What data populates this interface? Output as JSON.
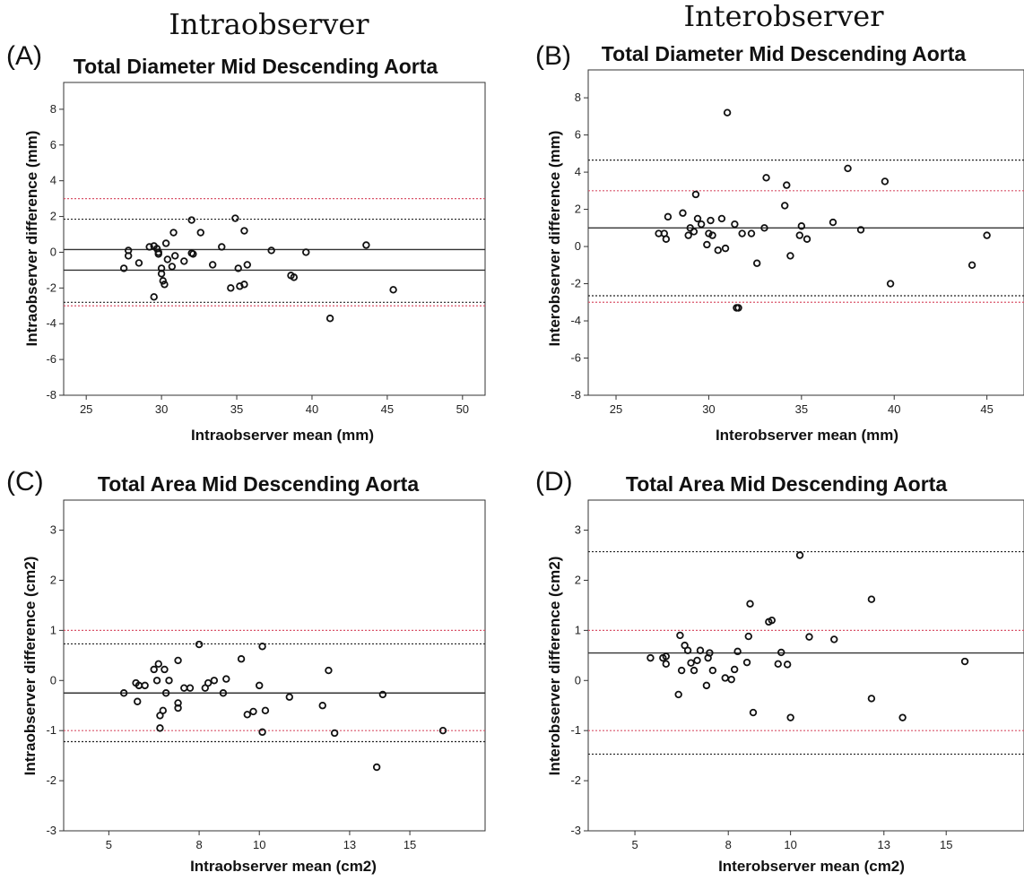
{
  "figure": {
    "column_titles": [
      "Intraobserver",
      "Interobserver"
    ]
  },
  "colors": {
    "marker": "#111111",
    "mean_line": "#333333",
    "loa_black": "#222222",
    "loa_red": "#d9546a"
  },
  "chart_data": [
    {
      "panel": "(A)",
      "type": "scatter",
      "title": "Total Diameter Mid Descending Aorta",
      "xlabel": "Intraobserver mean (mm)",
      "ylabel": "Intraobserver difference (mm)",
      "xlim": [
        23.5,
        51.5
      ],
      "ylim": [
        -8,
        9.5
      ],
      "xticks": [
        25,
        30,
        35,
        40,
        45,
        50
      ],
      "yticks": [
        -8,
        -6,
        -4,
        -2,
        0,
        2,
        4,
        6,
        8
      ],
      "grid": false,
      "reference_lines": [
        {
          "y": 0.15,
          "style": "solid",
          "color": "black"
        },
        {
          "y": -1.0,
          "style": "solid",
          "color": "black"
        },
        {
          "y": 1.85,
          "style": "dotted",
          "color": "black"
        },
        {
          "y": -2.8,
          "style": "dotted",
          "color": "black"
        },
        {
          "y": 3.0,
          "style": "dotted",
          "color": "red"
        },
        {
          "y": -3.0,
          "style": "dotted",
          "color": "red"
        }
      ],
      "points": [
        [
          27.5,
          -0.9
        ],
        [
          27.8,
          -0.2
        ],
        [
          27.8,
          0.1
        ],
        [
          28.5,
          -0.6
        ],
        [
          29.2,
          0.3
        ],
        [
          29.5,
          0.35
        ],
        [
          29.5,
          -2.5
        ],
        [
          29.7,
          0.2
        ],
        [
          29.8,
          0.0
        ],
        [
          29.8,
          -0.1
        ],
        [
          30.0,
          -0.9
        ],
        [
          30.0,
          -1.2
        ],
        [
          30.1,
          -1.6
        ],
        [
          30.2,
          -1.8
        ],
        [
          30.3,
          0.5
        ],
        [
          30.4,
          -0.4
        ],
        [
          30.7,
          -0.8
        ],
        [
          30.8,
          1.1
        ],
        [
          30.9,
          -0.2
        ],
        [
          31.5,
          -0.5
        ],
        [
          32.0,
          1.8
        ],
        [
          32.0,
          -0.05
        ],
        [
          32.1,
          -0.1
        ],
        [
          32.6,
          1.1
        ],
        [
          33.4,
          -0.7
        ],
        [
          34.0,
          0.3
        ],
        [
          34.6,
          -2.0
        ],
        [
          34.9,
          1.9
        ],
        [
          35.1,
          -0.9
        ],
        [
          35.2,
          -1.9
        ],
        [
          35.5,
          -1.8
        ],
        [
          35.5,
          1.2
        ],
        [
          35.7,
          -0.7
        ],
        [
          37.3,
          0.1
        ],
        [
          38.6,
          -1.3
        ],
        [
          38.8,
          -1.4
        ],
        [
          39.6,
          0.0
        ],
        [
          41.2,
          -3.7
        ],
        [
          43.6,
          0.4
        ],
        [
          45.4,
          -2.1
        ]
      ]
    },
    {
      "panel": "(B)",
      "type": "scatter",
      "title": "Total Diameter Mid Descending Aorta",
      "xlabel": "Interobserver mean (mm)",
      "ylabel": "Interobserver difference (mm)",
      "xlim": [
        23.5,
        47
      ],
      "ylim": [
        -8,
        9.5
      ],
      "xticks": [
        25,
        30,
        35,
        40,
        45
      ],
      "yticks": [
        -8,
        -6,
        -4,
        -2,
        0,
        2,
        4,
        6,
        8
      ],
      "grid": false,
      "reference_lines": [
        {
          "y": 1.0,
          "style": "solid",
          "color": "black"
        },
        {
          "y": 4.65,
          "style": "dotted",
          "color": "black"
        },
        {
          "y": -2.65,
          "style": "dotted",
          "color": "black"
        },
        {
          "y": 3.0,
          "style": "dotted",
          "color": "red"
        },
        {
          "y": -3.0,
          "style": "dotted",
          "color": "red"
        }
      ],
      "points": [
        [
          27.3,
          0.7
        ],
        [
          27.6,
          0.7
        ],
        [
          27.7,
          0.4
        ],
        [
          27.8,
          1.6
        ],
        [
          28.6,
          1.8
        ],
        [
          28.9,
          0.6
        ],
        [
          29.0,
          1.0
        ],
        [
          29.2,
          0.8
        ],
        [
          29.3,
          2.8
        ],
        [
          29.4,
          1.5
        ],
        [
          29.6,
          1.2
        ],
        [
          29.9,
          0.1
        ],
        [
          30.0,
          0.7
        ],
        [
          30.1,
          1.4
        ],
        [
          30.2,
          0.6
        ],
        [
          30.5,
          -0.2
        ],
        [
          30.7,
          1.5
        ],
        [
          30.9,
          -0.1
        ],
        [
          31.0,
          7.2
        ],
        [
          31.4,
          1.2
        ],
        [
          31.5,
          -3.3
        ],
        [
          31.6,
          -3.3
        ],
        [
          31.8,
          0.7
        ],
        [
          32.3,
          0.7
        ],
        [
          32.6,
          -0.9
        ],
        [
          33.0,
          1.0
        ],
        [
          33.1,
          3.7
        ],
        [
          34.1,
          2.2
        ],
        [
          34.2,
          3.3
        ],
        [
          34.4,
          -0.5
        ],
        [
          34.9,
          0.6
        ],
        [
          35.0,
          1.1
        ],
        [
          35.3,
          0.4
        ],
        [
          36.7,
          1.3
        ],
        [
          37.5,
          4.2
        ],
        [
          38.2,
          0.9
        ],
        [
          39.5,
          3.5
        ],
        [
          39.8,
          -2.0
        ],
        [
          44.2,
          -1.0
        ],
        [
          45.0,
          0.6
        ]
      ]
    },
    {
      "panel": "(C)",
      "type": "scatter",
      "title": "Total Area Mid Descending Aorta",
      "xlabel": "Intraobserver mean (cm2)",
      "ylabel": "Intraobserver difference (cm2)",
      "xlim": [
        3.5,
        17.5
      ],
      "ylim": [
        -3,
        3.6
      ],
      "xticks": [
        5,
        8,
        10,
        13,
        15
      ],
      "yticks": [
        -3,
        -2,
        -1,
        0,
        1,
        2,
        3
      ],
      "grid": false,
      "reference_lines": [
        {
          "y": -0.25,
          "style": "solid",
          "color": "black"
        },
        {
          "y": 0.73,
          "style": "dotted",
          "color": "black"
        },
        {
          "y": -1.22,
          "style": "dotted",
          "color": "black"
        },
        {
          "y": 1.0,
          "style": "dotted",
          "color": "red"
        },
        {
          "y": -1.0,
          "style": "dotted",
          "color": "red"
        }
      ],
      "points": [
        [
          5.5,
          -0.25
        ],
        [
          5.9,
          -0.05
        ],
        [
          5.95,
          -0.42
        ],
        [
          6.0,
          -0.1
        ],
        [
          6.2,
          -0.1
        ],
        [
          6.5,
          0.22
        ],
        [
          6.6,
          0.0
        ],
        [
          6.65,
          0.33
        ],
        [
          6.7,
          -0.7
        ],
        [
          6.7,
          -0.95
        ],
        [
          6.8,
          -0.6
        ],
        [
          6.85,
          0.22
        ],
        [
          6.9,
          -0.25
        ],
        [
          7.0,
          0.0
        ],
        [
          7.3,
          -0.55
        ],
        [
          7.3,
          -0.45
        ],
        [
          7.3,
          0.4
        ],
        [
          7.5,
          -0.15
        ],
        [
          7.7,
          -0.15
        ],
        [
          8.0,
          0.72
        ],
        [
          8.2,
          -0.15
        ],
        [
          8.3,
          -0.05
        ],
        [
          8.5,
          0.0
        ],
        [
          8.8,
          -0.25
        ],
        [
          8.9,
          0.03
        ],
        [
          9.4,
          0.43
        ],
        [
          9.6,
          -0.68
        ],
        [
          9.8,
          -0.62
        ],
        [
          10.0,
          -0.1
        ],
        [
          10.1,
          0.68
        ],
        [
          10.2,
          -0.6
        ],
        [
          10.1,
          -1.03
        ],
        [
          11.0,
          -0.33
        ],
        [
          12.1,
          -0.5
        ],
        [
          12.3,
          0.2
        ],
        [
          12.5,
          -1.05
        ],
        [
          13.9,
          -1.73
        ],
        [
          14.1,
          -0.28
        ],
        [
          16.1,
          -1.0
        ]
      ]
    },
    {
      "panel": "(D)",
      "type": "scatter",
      "title": "Total Area Mid Descending Aorta",
      "xlabel": "Interobserver mean (cm2)",
      "ylabel": "Interobserver difference (cm2)",
      "xlim": [
        3.5,
        17.5
      ],
      "ylim": [
        -3,
        3.6
      ],
      "xticks": [
        5,
        8,
        10,
        13,
        15
      ],
      "yticks": [
        -3,
        -2,
        -1,
        0,
        1,
        2,
        3
      ],
      "grid": false,
      "reference_lines": [
        {
          "y": 0.55,
          "style": "solid",
          "color": "black"
        },
        {
          "y": 2.57,
          "style": "dotted",
          "color": "black"
        },
        {
          "y": -1.47,
          "style": "dotted",
          "color": "black"
        },
        {
          "y": 1.0,
          "style": "dotted",
          "color": "red"
        },
        {
          "y": -1.0,
          "style": "dotted",
          "color": "red"
        }
      ],
      "points": [
        [
          5.5,
          0.45
        ],
        [
          5.9,
          0.45
        ],
        [
          6.0,
          0.33
        ],
        [
          6.0,
          0.48
        ],
        [
          6.4,
          -0.28
        ],
        [
          6.45,
          0.9
        ],
        [
          6.5,
          0.2
        ],
        [
          6.6,
          0.7
        ],
        [
          6.7,
          0.6
        ],
        [
          6.8,
          0.35
        ],
        [
          6.9,
          0.2
        ],
        [
          7.0,
          0.4
        ],
        [
          7.1,
          0.6
        ],
        [
          7.3,
          -0.1
        ],
        [
          7.35,
          0.45
        ],
        [
          7.4,
          0.55
        ],
        [
          7.5,
          0.2
        ],
        [
          7.9,
          0.05
        ],
        [
          8.2,
          0.22
        ],
        [
          8.3,
          0.58
        ],
        [
          8.6,
          0.36
        ],
        [
          8.65,
          0.88
        ],
        [
          8.7,
          1.53
        ],
        [
          8.8,
          -0.64
        ],
        [
          9.3,
          1.17
        ],
        [
          9.4,
          1.2
        ],
        [
          9.6,
          0.33
        ],
        [
          9.7,
          0.56
        ],
        [
          9.9,
          0.32
        ],
        [
          10.0,
          -0.74
        ],
        [
          10.3,
          2.5
        ],
        [
          10.6,
          0.87
        ],
        [
          11.4,
          0.82
        ],
        [
          12.6,
          1.62
        ],
        [
          12.6,
          -0.36
        ],
        [
          13.6,
          -0.74
        ],
        [
          15.6,
          0.38
        ],
        [
          8.1,
          0.02
        ]
      ]
    }
  ]
}
